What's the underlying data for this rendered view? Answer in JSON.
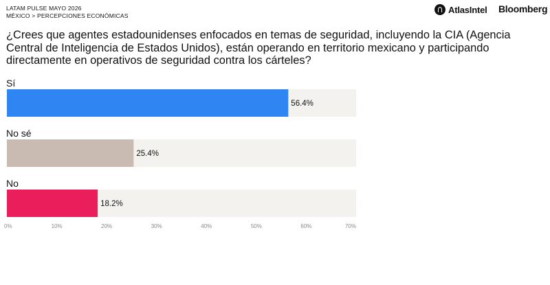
{
  "header": {
    "line1": "LATAM PULSE MAYO 2026",
    "line2": "MÉXICO > PERCEPCIONES ECONÓMICAS",
    "brand_atlas": "AtlasIntel",
    "brand_bloomberg": "Bloomberg"
  },
  "question": "¿Crees que agentes estadounidenses enfocados en temas de seguridad, incluyendo la CIA (Agencia Central de Inteligencia de Estados Unidos), están operando en territorio mexicano y participando directamente en operativos de seguridad contra los cárteles?",
  "chart_data": {
    "type": "bar",
    "orientation": "horizontal",
    "categories": [
      "Sí",
      "No sé",
      "No"
    ],
    "values": [
      56.4,
      25.4,
      18.2
    ],
    "value_labels": [
      "56.4%",
      "25.4%",
      "18.2%"
    ],
    "colors": [
      "#2F85F2",
      "#C9BBB1",
      "#E91E5B"
    ],
    "track_color": "#F3F2EF",
    "xlim": [
      0,
      70
    ],
    "xticks": [
      0,
      10,
      20,
      30,
      40,
      50,
      60,
      70
    ],
    "xtick_labels": [
      "0%",
      "10%",
      "20%",
      "30%",
      "40%",
      "50%",
      "60%",
      "70%"
    ],
    "grid": false
  }
}
